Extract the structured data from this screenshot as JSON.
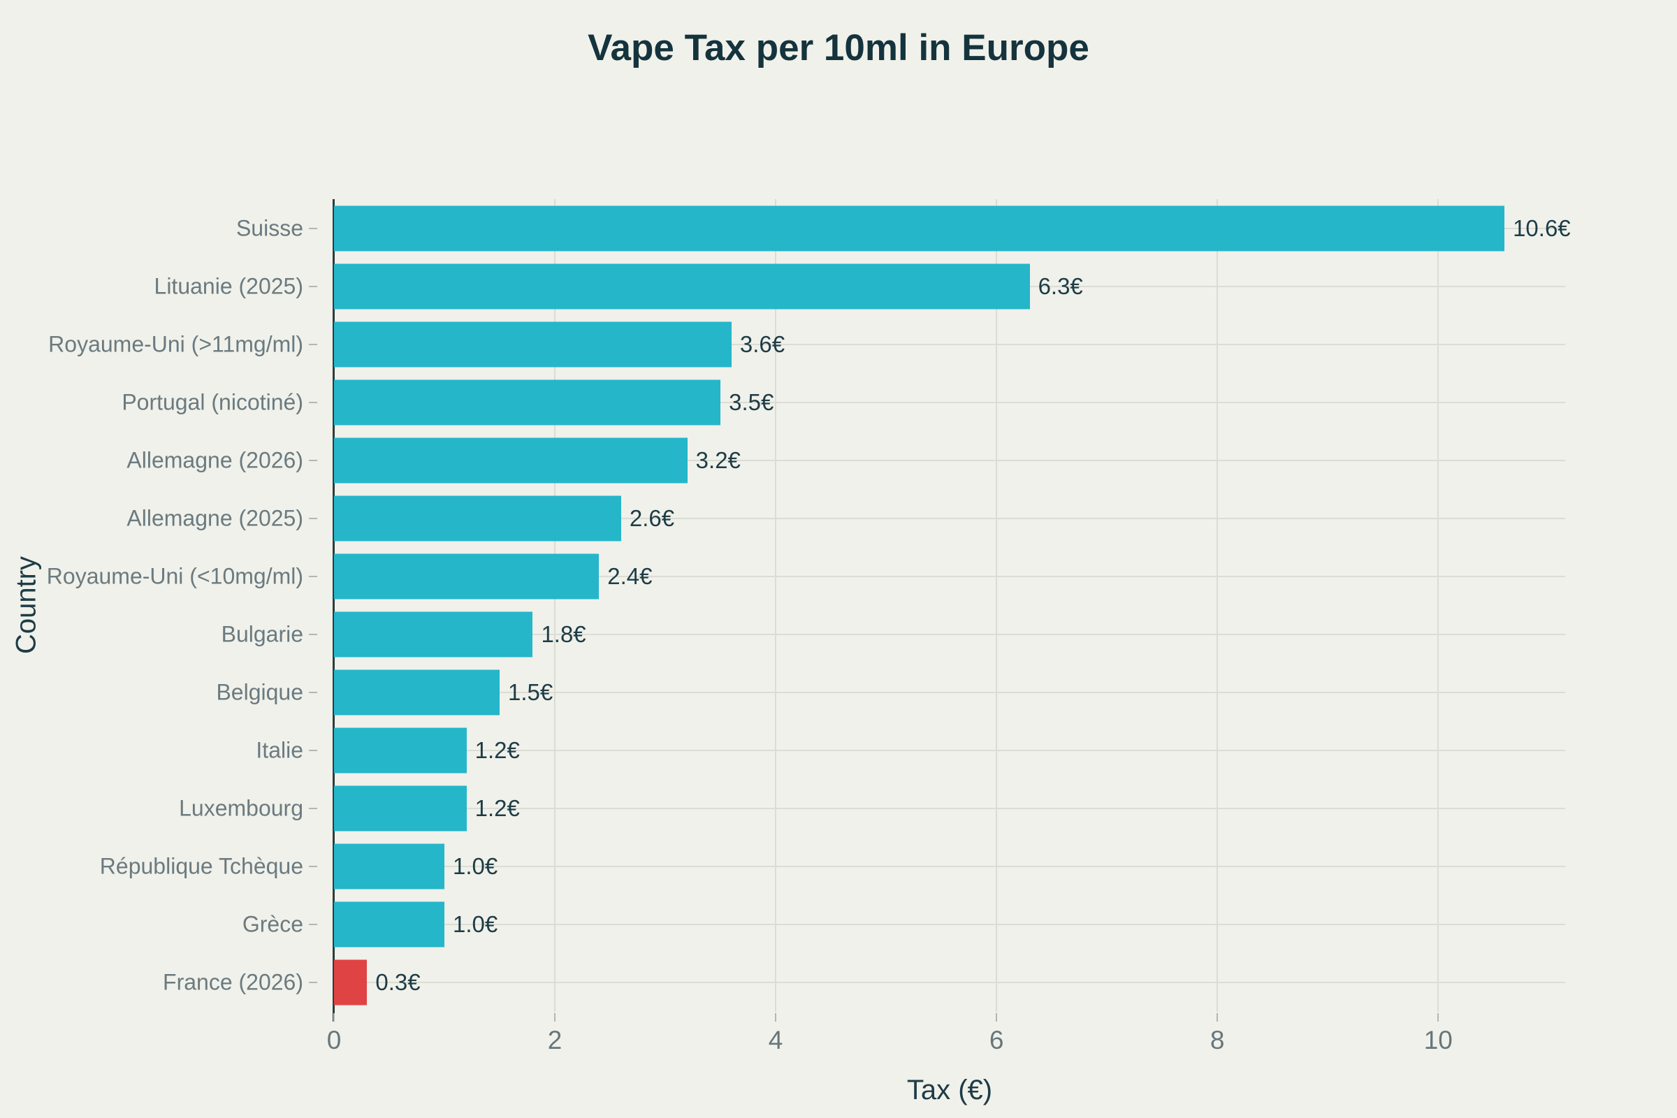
{
  "title": "Vape Tax per 10ml in Europe",
  "colors": {
    "background": "#f0f1ea",
    "bar": "#25b6c9",
    "highlight": "#e04343",
    "heading_text": "#15333d",
    "axis_title_text": "#1d3c46",
    "tick_text": "#6b7a80",
    "grid": "#dbdcd4",
    "axis_line": "#2b3d3d"
  },
  "chart_data": {
    "type": "bar",
    "orientation": "horizontal",
    "title": "Vape Tax per 10ml in Europe",
    "xlabel": "Tax (€)",
    "ylabel": "Country",
    "xlim": [
      0,
      11.15
    ],
    "xticks": [
      0,
      2,
      4,
      6,
      8,
      10
    ],
    "grid": true,
    "legend": false,
    "categories": [
      "Suisse",
      "Lituanie (2025)",
      "Royaume-Uni (>11mg/ml)",
      "Portugal (nicotiné)",
      "Allemagne (2026)",
      "Allemagne (2025)",
      "Royaume-Uni (<10mg/ml)",
      "Bulgarie",
      "Belgique",
      "Italie",
      "Luxembourg",
      "République Tchèque",
      "Grèce",
      "France (2026)"
    ],
    "values": [
      10.6,
      6.3,
      3.6,
      3.5,
      3.2,
      2.6,
      2.4,
      1.8,
      1.5,
      1.2,
      1.2,
      1.0,
      1.0,
      0.3
    ],
    "value_labels": [
      "10.6€",
      "6.3€",
      "3.6€",
      "3.5€",
      "3.2€",
      "2.6€",
      "2.4€",
      "1.8€",
      "1.5€",
      "1.2€",
      "1.2€",
      "1.0€",
      "1.0€",
      "0.3€"
    ],
    "highlight_index": 13
  }
}
